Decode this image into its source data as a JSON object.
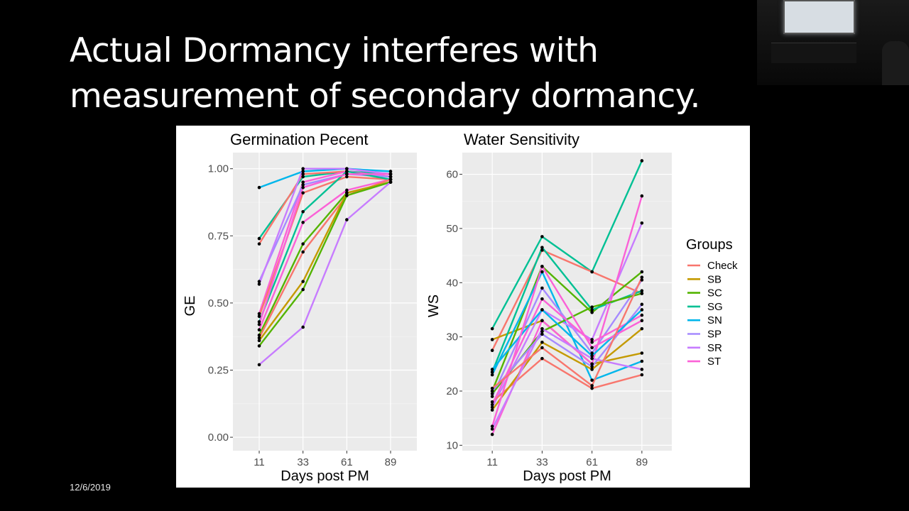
{
  "slide": {
    "title_line1": "Actual Dormancy interferes with",
    "title_line2": "measurement of secondary dormancy.",
    "date": "12/6/2019"
  },
  "colors": {
    "Check": "#F8766D",
    "SB": "#C49A00",
    "SC": "#53B400",
    "SG": "#00C094",
    "SN": "#00B6EB",
    "SP": "#A58AFF",
    "SR": "#C77CFF",
    "ST": "#FB61D7",
    "panel_bg": "#EBEBEB",
    "grid": "#FFFFFF",
    "axis_text": "#4D4D4D"
  },
  "legend": {
    "title": "Groups",
    "items": [
      "Check",
      "SB",
      "SC",
      "SG",
      "SN",
      "SP",
      "SR",
      "ST"
    ]
  },
  "chart_data": [
    {
      "type": "line",
      "title": "Germination Pecent",
      "xlabel": "Days post PM",
      "ylabel": "GE",
      "x": [
        11,
        33,
        61,
        89
      ],
      "ylim": [
        -0.05,
        1.06
      ],
      "yticks": [
        0.0,
        0.25,
        0.5,
        0.75,
        1.0
      ],
      "ytick_labels": [
        "0.00",
        "0.25",
        "0.50",
        "0.75",
        "1.00"
      ],
      "grid": true,
      "series": [
        {
          "group": "SN",
          "values": [
            0.93,
            0.99,
            1.0,
            0.99
          ]
        },
        {
          "group": "SG",
          "values": [
            0.74,
            0.97,
            0.99,
            0.98
          ]
        },
        {
          "group": "Check",
          "values": [
            0.72,
            0.98,
            0.99,
            0.97
          ]
        },
        {
          "group": "ST",
          "values": [
            0.46,
            0.95,
            0.99,
            0.97
          ]
        },
        {
          "group": "SP",
          "values": [
            0.58,
            0.94,
            0.98,
            0.97
          ]
        },
        {
          "group": "Check",
          "values": [
            0.45,
            0.91,
            0.97,
            0.96
          ]
        },
        {
          "group": "SG",
          "values": [
            0.43,
            0.84,
            0.99,
            0.96
          ]
        },
        {
          "group": "ST",
          "values": [
            0.4,
            0.8,
            0.92,
            0.96
          ]
        },
        {
          "group": "SC",
          "values": [
            0.38,
            0.72,
            0.91,
            0.95
          ]
        },
        {
          "group": "Check",
          "values": [
            0.37,
            0.69,
            0.9,
            0.96
          ]
        },
        {
          "group": "SB",
          "values": [
            0.36,
            0.58,
            0.91,
            0.95
          ]
        },
        {
          "group": "SC",
          "values": [
            0.34,
            0.55,
            0.9,
            0.95
          ]
        },
        {
          "group": "SR",
          "values": [
            0.27,
            0.41,
            0.81,
            0.95
          ]
        },
        {
          "group": "SR",
          "values": [
            0.57,
            1.0,
            1.0,
            0.98
          ]
        },
        {
          "group": "ST",
          "values": [
            0.42,
            0.93,
            0.98,
            0.98
          ]
        }
      ]
    },
    {
      "type": "line",
      "title": "Water Sensitivity",
      "xlabel": "Days post PM",
      "ylabel": "WS",
      "x": [
        11,
        33,
        61,
        89
      ],
      "ylim": [
        9,
        64
      ],
      "yticks": [
        10,
        20,
        30,
        40,
        50,
        60
      ],
      "ytick_labels": [
        "10",
        "20",
        "30",
        "40",
        "50",
        "60"
      ],
      "grid": true,
      "series": [
        {
          "group": "SG",
          "values": [
            31.5,
            48.5,
            42.0,
            62.5
          ]
        },
        {
          "group": "Check",
          "values": [
            27.5,
            46.0,
            42.0,
            38.0
          ]
        },
        {
          "group": "SB",
          "values": [
            29.5,
            33.0,
            25.0,
            27.0
          ]
        },
        {
          "group": "SC",
          "values": [
            20.0,
            43.0,
            34.5,
            42.0
          ]
        },
        {
          "group": "SG",
          "values": [
            23.5,
            46.5,
            35.0,
            38.5
          ]
        },
        {
          "group": "SN",
          "values": [
            23.0,
            42.0,
            22.0,
            25.5
          ]
        },
        {
          "group": "SP",
          "values": [
            19.0,
            39.0,
            27.0,
            40.5
          ]
        },
        {
          "group": "SR",
          "values": [
            17.0,
            35.0,
            29.5,
            51.0
          ]
        },
        {
          "group": "ST",
          "values": [
            12.0,
            33.0,
            25.0,
            56.0
          ]
        },
        {
          "group": "Check",
          "values": [
            18.0,
            26.0,
            20.5,
            23.0
          ]
        },
        {
          "group": "SB",
          "values": [
            16.5,
            29.0,
            24.0,
            31.5
          ]
        },
        {
          "group": "SC",
          "values": [
            19.5,
            31.0,
            35.5,
            38.0
          ]
        },
        {
          "group": "SP",
          "values": [
            20.0,
            30.5,
            24.5,
            36.0
          ]
        },
        {
          "group": "SR",
          "values": [
            13.0,
            31.5,
            26.0,
            24.0
          ]
        },
        {
          "group": "ST",
          "values": [
            17.5,
            37.0,
            29.0,
            34.0
          ]
        },
        {
          "group": "SN",
          "values": [
            24.0,
            35.0,
            26.5,
            35.0
          ]
        },
        {
          "group": "ST",
          "values": [
            13.5,
            43.0,
            28.0,
            33.0
          ]
        },
        {
          "group": "Check",
          "values": [
            20.5,
            28.0,
            21.0,
            41.0
          ]
        }
      ]
    }
  ]
}
